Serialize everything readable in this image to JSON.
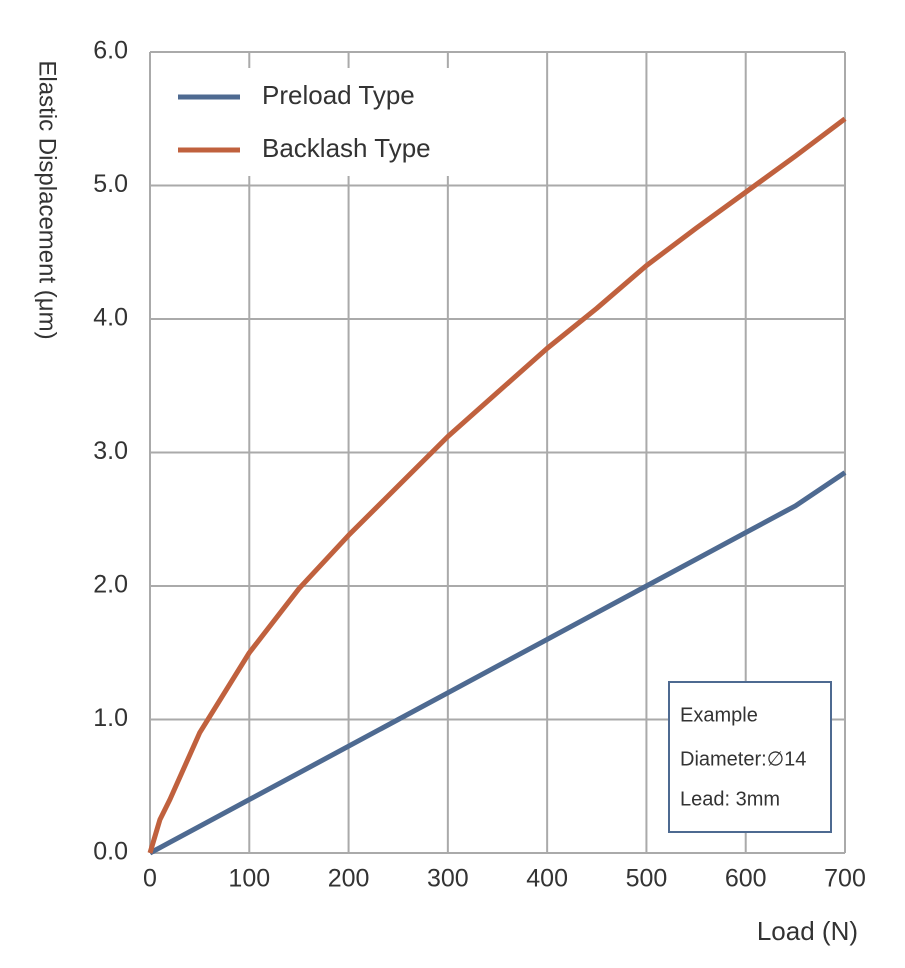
{
  "chart_data": {
    "type": "line",
    "x_label": "Load (N)",
    "y_label": "Elastic Displacement (μm)",
    "x": [
      0,
      10,
      20,
      50,
      100,
      150,
      200,
      250,
      300,
      350,
      400,
      450,
      500,
      550,
      600,
      650,
      700
    ],
    "series": [
      {
        "name": "Preload Type",
        "color": "#4e6a91",
        "values": [
          0,
          0.04,
          0.08,
          0.2,
          0.4,
          0.6,
          0.8,
          1.0,
          1.2,
          1.4,
          1.6,
          1.8,
          2.0,
          2.2,
          2.4,
          2.6,
          2.85
        ]
      },
      {
        "name": "Backlash Type",
        "color": "#c0613e",
        "values": [
          0,
          0.25,
          0.4,
          0.9,
          1.5,
          1.98,
          2.38,
          2.75,
          3.12,
          3.45,
          3.78,
          4.08,
          4.4,
          4.68,
          4.95,
          5.22,
          5.5
        ]
      }
    ],
    "xlim": [
      0,
      700
    ],
    "ylim": [
      0,
      6
    ],
    "xticks": [
      0,
      100,
      200,
      300,
      400,
      500,
      600,
      700
    ],
    "yticks": [
      {
        "value": 0,
        "label": "0.0"
      },
      {
        "value": 1,
        "label": "1.0"
      },
      {
        "value": 2,
        "label": "2.0"
      },
      {
        "value": 3,
        "label": "3.0"
      },
      {
        "value": 4,
        "label": "4.0"
      },
      {
        "value": 5,
        "label": "5.0"
      },
      {
        "value": 6,
        "label": "6.0"
      }
    ],
    "grid": true,
    "legend": "upper-left",
    "annotation": [
      "Example",
      "Diameter:∅14",
      "Lead: 3mm"
    ]
  }
}
